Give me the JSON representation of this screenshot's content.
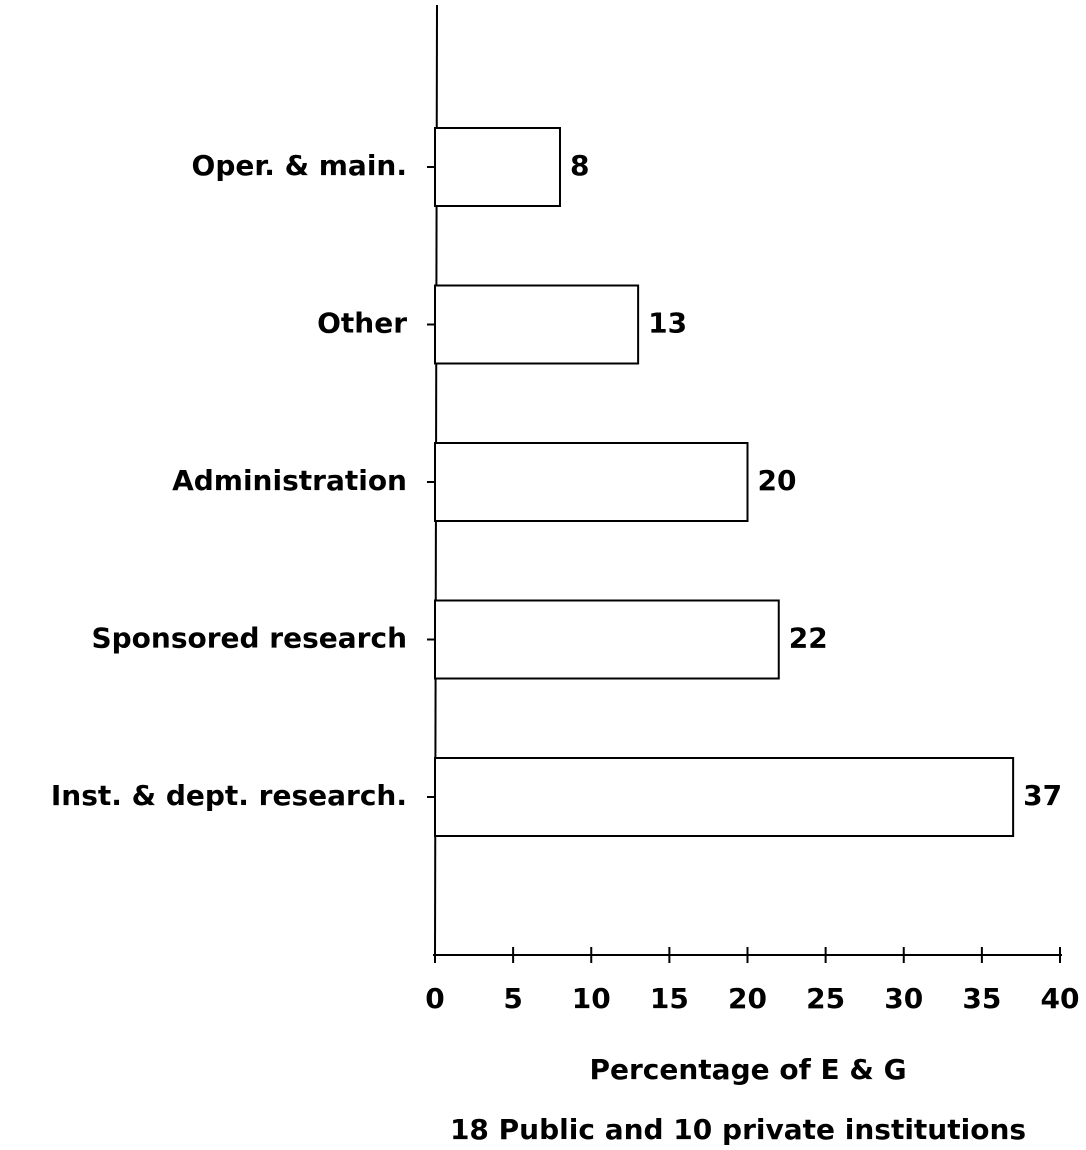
{
  "chart_data": {
    "type": "barh",
    "categories": [
      "Oper. & main.",
      "Other",
      "Administration",
      "Sponsored research",
      "Inst. & dept. research."
    ],
    "values": [
      8,
      13,
      20,
      22,
      37
    ],
    "color": "#ffffff",
    "xlim": [
      0,
      40
    ],
    "xticks": [
      0,
      5,
      10,
      15,
      20,
      25,
      30,
      35,
      40
    ],
    "xlabel": "Percentage of E & G",
    "subtitle": "18 Public and 10 private institutions"
  }
}
